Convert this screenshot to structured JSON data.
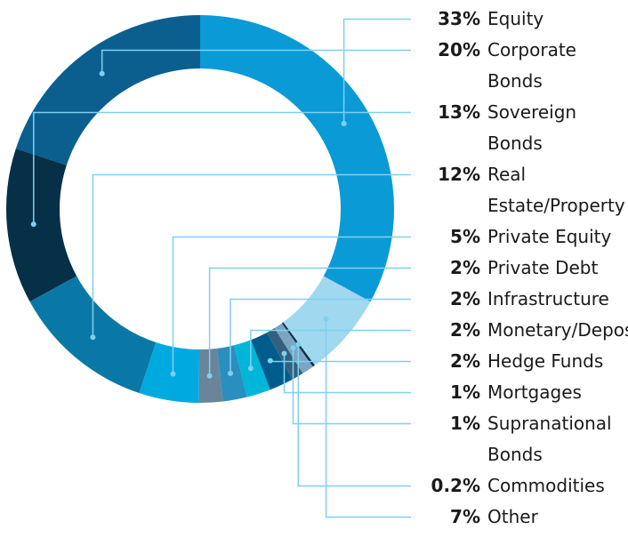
{
  "chart_data": {
    "type": "donut",
    "categories": [
      "Equity",
      "Corporate Bonds",
      "Sovereign Bonds",
      "Real Estate/Property",
      "Private Equity",
      "Private Debt",
      "Infrastructure",
      "Monetary/Deposit",
      "Hedge Funds",
      "Mortgages",
      "Supranational Bonds",
      "Commodities",
      "Other"
    ],
    "values": [
      33,
      20,
      13,
      12,
      5,
      2,
      2,
      2,
      2,
      1,
      1,
      0.2,
      7
    ],
    "value_labels": [
      "33%",
      "20%",
      "13%",
      "12%",
      "5%",
      "2%",
      "2%",
      "2%",
      "2%",
      "1%",
      "1%",
      "0.2%",
      "7%"
    ],
    "colors": [
      "#0a9ad6",
      "#0b5f8f",
      "#062f48",
      "#0a78a6",
      "#00a9e0",
      "#6a8499",
      "#2a8fbf",
      "#00b6d8",
      "#005c8c",
      "#33607e",
      "#7aa6c3",
      "#0a2f46",
      "#9fd8ef"
    ]
  }
}
